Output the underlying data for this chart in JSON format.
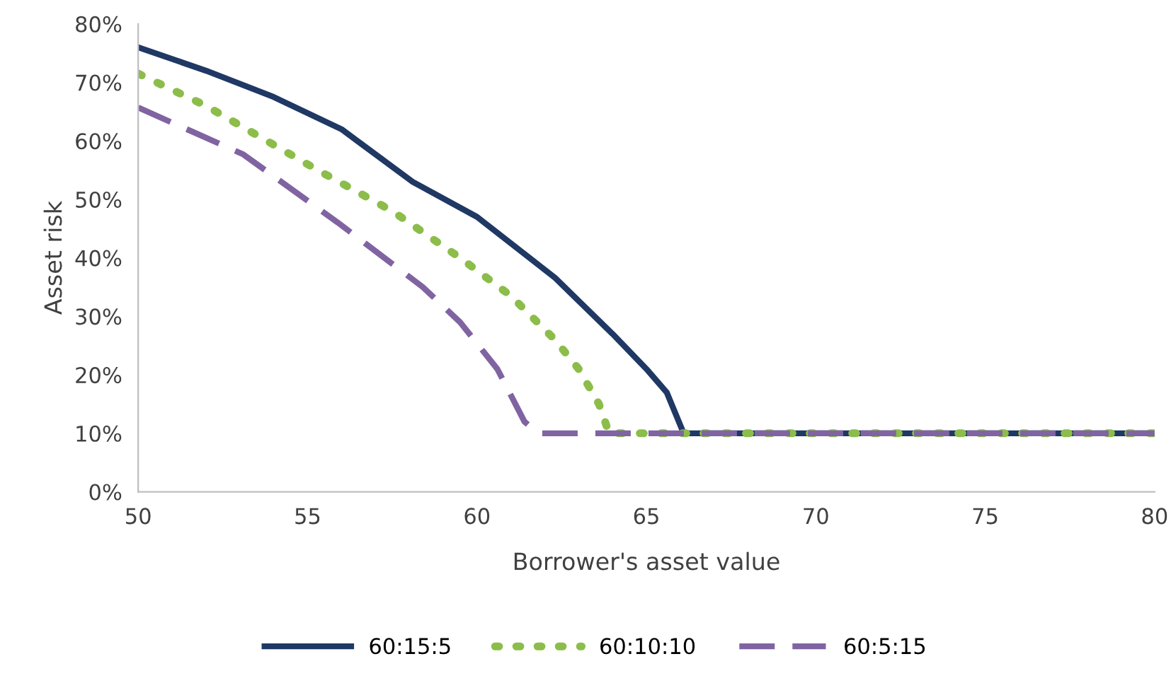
{
  "chart_data": {
    "type": "line",
    "xlabel": "Borrower's asset value",
    "ylabel": "Asset risk",
    "xlim": [
      50,
      80
    ],
    "xticks": [
      50,
      55,
      60,
      65,
      70,
      75,
      80
    ],
    "ylim": [
      0,
      80
    ],
    "yticks": [
      {
        "value": 0,
        "label": "0%"
      },
      {
        "value": 10,
        "label": "10%"
      },
      {
        "value": 20,
        "label": "20%"
      },
      {
        "value": 30,
        "label": "30%"
      },
      {
        "value": 40,
        "label": "40%"
      },
      {
        "value": 50,
        "label": "50%"
      },
      {
        "value": 60,
        "label": "60%"
      },
      {
        "value": 70,
        "label": "70%"
      },
      {
        "value": 80,
        "label": "80%"
      }
    ],
    "grid": false,
    "legend": "bottom",
    "series": [
      {
        "name": "60:15:5",
        "color": "#1f3864",
        "line_style": "solid",
        "x": [
          50,
          52,
          54,
          56,
          58.1,
          60,
          62.3,
          64,
          65,
          65.6,
          66.1,
          70,
          80
        ],
        "values": [
          76,
          72,
          67.5,
          62,
          53,
          47,
          36.6,
          27,
          21,
          17,
          10,
          10,
          10
        ]
      },
      {
        "name": "60:10:10",
        "color": "#8cbd4a",
        "line_style": "dotted",
        "x": [
          50,
          52,
          55.3,
          57.5,
          59.5,
          61,
          62.3,
          63,
          63.6,
          63.9,
          66,
          80
        ],
        "values": [
          71.5,
          66,
          55,
          48,
          40,
          33.5,
          26,
          21,
          15,
          10,
          10,
          10
        ]
      },
      {
        "name": "60:5:15",
        "color": "#8064a2",
        "line_style": "dashed",
        "x": [
          50,
          53.1,
          55.9,
          58.4,
          59.5,
          60.6,
          61.4,
          61.8,
          66,
          80
        ],
        "values": [
          65.7,
          57.7,
          46,
          35,
          29,
          21,
          12,
          10,
          10,
          10
        ]
      }
    ]
  }
}
